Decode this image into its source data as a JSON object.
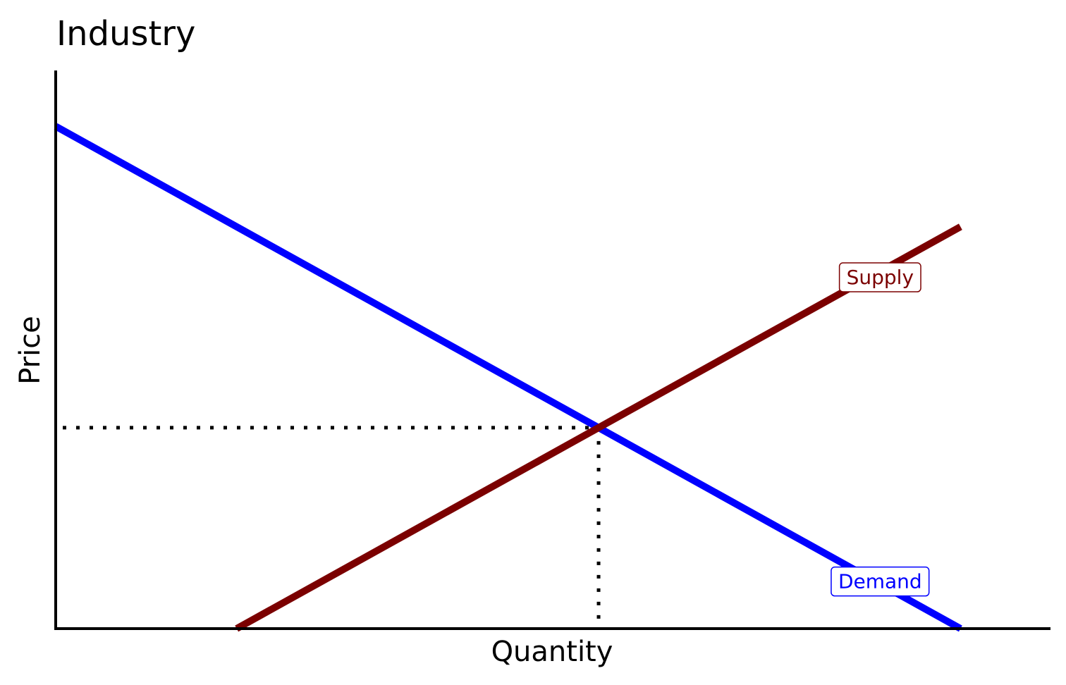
{
  "chart_data": {
    "type": "line",
    "title": "Industry",
    "xlabel": "Quantity",
    "ylabel": "Price",
    "xlim": [
      0,
      10
    ],
    "ylim": [
      0,
      10
    ],
    "show_ticks": false,
    "grid": false,
    "series": [
      {
        "name": "Demand",
        "color": "#0000ff",
        "x": [
          0,
          9
        ],
        "y": [
          9,
          0
        ]
      },
      {
        "name": "Supply",
        "color": "#7b0000",
        "x": [
          1.8,
          9
        ],
        "y": [
          0,
          7.2
        ]
      }
    ],
    "equilibrium": {
      "x": 5.4,
      "y": 3.6,
      "guide_style": "dotted"
    },
    "labels": [
      {
        "text": "Supply",
        "series": "Supply",
        "x": 8.2,
        "y": 6.3
      },
      {
        "text": "Demand",
        "series": "Demand",
        "x": 8.2,
        "y": 0.85
      }
    ]
  }
}
